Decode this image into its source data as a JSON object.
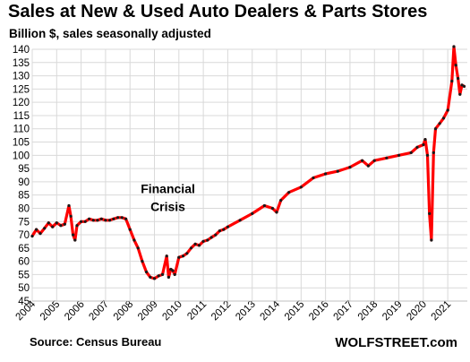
{
  "title": "Sales at New & Used Auto Dealers & Parts Stores",
  "subtitle": "Billion $, sales seasonally adjusted",
  "source": "Source: Census Bureau",
  "brand": "WOLFSTREET.com",
  "colors": {
    "line": "#ff0000",
    "markers": "#1a1a1a",
    "grid": "#d9d9d9"
  },
  "chart_data": {
    "type": "line",
    "title": "Sales at New & Used Auto Dealers & Parts Stores",
    "subtitle": "Billion $, sales seasonally adjusted",
    "xlabel": "",
    "ylabel": "",
    "ylim": [
      45,
      140
    ],
    "xlim": [
      2004,
      2021.8
    ],
    "yticks": [
      45,
      50,
      55,
      60,
      65,
      70,
      75,
      80,
      85,
      90,
      95,
      100,
      105,
      110,
      115,
      120,
      125,
      130,
      135,
      140
    ],
    "xticks": [
      2004,
      2005,
      2006,
      2007,
      2008,
      2009,
      2010,
      2011,
      2012,
      2013,
      2014,
      2015,
      2016,
      2017,
      2018,
      2019,
      2020,
      2021
    ],
    "grid": true,
    "legend": "none",
    "annotations": [
      {
        "lines": [
          "Financial",
          "Crisis"
        ],
        "x": 2009.55,
        "y": 80
      }
    ],
    "series": [
      {
        "x": [
          2004.0,
          2004.17,
          2004.33,
          2004.5,
          2004.67,
          2004.83,
          2005.0,
          2005.17,
          2005.33,
          2005.5,
          2005.58,
          2005.67,
          2005.75,
          2005.83,
          2006.0,
          2006.17,
          2006.33,
          2006.5,
          2006.67,
          2006.83,
          2007.0,
          2007.17,
          2007.33,
          2007.5,
          2007.67,
          2007.83,
          2008.0,
          2008.17,
          2008.33,
          2008.5,
          2008.67,
          2008.83,
          2009.0,
          2009.17,
          2009.33,
          2009.5,
          2009.58,
          2009.67,
          2009.75,
          2009.83,
          2010.0,
          2010.17,
          2010.33,
          2010.5,
          2010.67,
          2010.83,
          2011.0,
          2011.17,
          2011.33,
          2011.5,
          2011.67,
          2011.83,
          2012.0,
          2012.5,
          2013.0,
          2013.5,
          2013.83,
          2014.0,
          2014.17,
          2014.5,
          2015.0,
          2015.5,
          2016.0,
          2016.5,
          2017.0,
          2017.5,
          2017.75,
          2018.0,
          2018.5,
          2019.0,
          2019.5,
          2019.75,
          2020.0,
          2020.08,
          2020.17,
          2020.25,
          2020.33,
          2020.42,
          2020.5,
          2020.67,
          2020.83,
          2021.0,
          2021.17,
          2021.25,
          2021.33,
          2021.42,
          2021.5,
          2021.58,
          2021.67
        ],
        "values": [
          69.5,
          72,
          70.5,
          72.5,
          74.5,
          73,
          74.5,
          73.5,
          74,
          81,
          77,
          70,
          68,
          73.5,
          75,
          75,
          76,
          75.5,
          75.5,
          76,
          75.5,
          75.5,
          76,
          76.5,
          76.5,
          76,
          72,
          68,
          65,
          60,
          56,
          54,
          53.5,
          54.5,
          55,
          62,
          54,
          57,
          56.5,
          55,
          61.5,
          62,
          63,
          65,
          66.5,
          66,
          67.5,
          68,
          69,
          70,
          71.5,
          72,
          73,
          75.5,
          78,
          81,
          80,
          78.5,
          83,
          86,
          88,
          91.5,
          93,
          94,
          95.5,
          98,
          96,
          98,
          99,
          100,
          101,
          103,
          104,
          106,
          100,
          78,
          68,
          101,
          110,
          112,
          114,
          117,
          128,
          141,
          134,
          129,
          123,
          126.5,
          126
        ]
      }
    ]
  }
}
